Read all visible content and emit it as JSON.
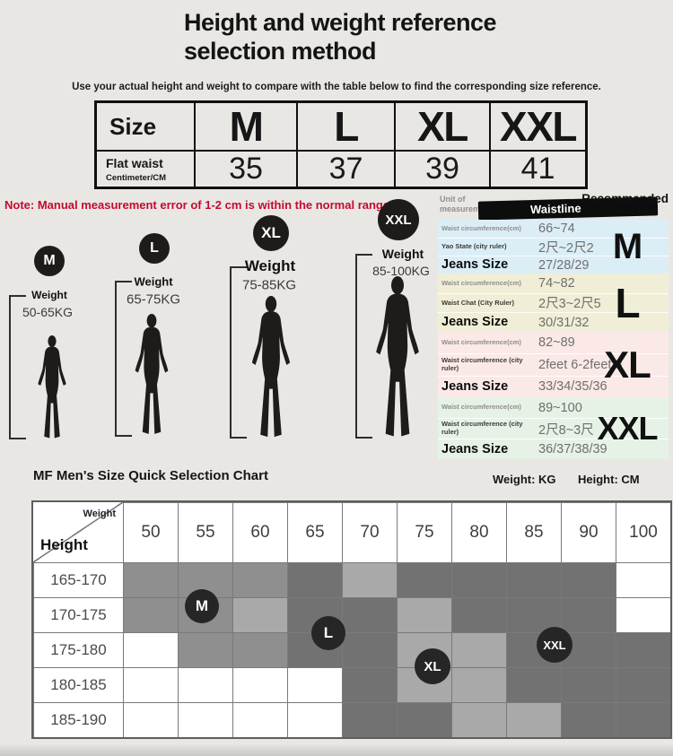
{
  "page": {
    "title_line1": "Height and weight reference",
    "title_line2": "selection method",
    "subtitle": "Use your actual height and weight to compare with the table below to find the corresponding size reference.",
    "note": "Note: Manual measurement error of 1-2 cm is within the normal range"
  },
  "size_table": {
    "corner_label": "Size",
    "sizes": [
      "M",
      "L",
      "XL",
      "XXL"
    ],
    "row_label": "Flat waist",
    "row_sublabel": "Centimeter/CM",
    "values": [
      "35",
      "37",
      "39",
      "41"
    ]
  },
  "figures": [
    {
      "badge": "M",
      "weight_label": "Weight",
      "weight_range": "50-65KG"
    },
    {
      "badge": "L",
      "weight_label": "Weight",
      "weight_range": "65-75KG"
    },
    {
      "badge": "XL",
      "weight_label": "Weight",
      "weight_range": "75-85KG"
    },
    {
      "badge": "XXL",
      "weight_label": "Weight",
      "weight_range": "85-100KG"
    }
  ],
  "spec_table": {
    "unit_label_line1": "Unit of",
    "unit_label_line2": "measurement",
    "banner_label": "Waistline",
    "recommended_label": "Recommended",
    "sections": [
      {
        "size": "M",
        "bg": "#dbeef6",
        "rows": [
          {
            "label": "Waist circumference(cm)",
            "value": "66~74"
          },
          {
            "label": "Yao State (city ruler)",
            "value": "2尺~2尺2"
          },
          {
            "label": "Jeans Size",
            "value": "27/28/29"
          }
        ]
      },
      {
        "size": "L",
        "bg": "#f1eed7",
        "rows": [
          {
            "label": "Waist circumference(cm)",
            "value": "74~82"
          },
          {
            "label": "Waist Chat (City Ruler)",
            "value": "2尺3~2尺5"
          },
          {
            "label": "Jeans Size",
            "value": "30/31/32"
          }
        ]
      },
      {
        "size": "XL",
        "bg": "#fbe9e7",
        "rows": [
          {
            "label": "Waist circumference(cm)",
            "value": "82~89"
          },
          {
            "label": "Waist circumference (city ruler)",
            "value": "2feet 6-2feet 8"
          },
          {
            "label": "Jeans Size",
            "value": "33/34/35/36"
          }
        ]
      },
      {
        "size": "XXL",
        "bg": "#e6f2e6",
        "rows": [
          {
            "label": "Waist circumference(cm)",
            "value": "89~100"
          },
          {
            "label": "Waist circumference (city ruler)",
            "value": "2尺8~3尺"
          },
          {
            "label": "Jeans Size",
            "value": "36/37/38/39"
          }
        ]
      }
    ]
  },
  "selection_chart": {
    "title": "MF Men's Size Quick Selection Chart",
    "weight_unit_label": "Weight: KG",
    "height_unit_label": "Height: CM",
    "corner_weight": "Weight",
    "corner_height": "Height",
    "weights": [
      "50",
      "55",
      "60",
      "65",
      "70",
      "75",
      "80",
      "85",
      "90",
      "100"
    ],
    "heights": [
      "165-170",
      "170-175",
      "175-180",
      "180-185",
      "185-190"
    ],
    "cells": [
      [
        "m",
        "m",
        "m",
        "d",
        "l",
        "d",
        "d",
        "d",
        "d",
        "w"
      ],
      [
        "m",
        "m",
        "l",
        "d",
        "d",
        "l",
        "d",
        "d",
        "d",
        "w"
      ],
      [
        "w",
        "m",
        "m",
        "d",
        "d",
        "l",
        "l",
        "d",
        "d",
        "d"
      ],
      [
        "w",
        "w",
        "w",
        "w",
        "d",
        "l",
        "l",
        "d",
        "d",
        "d"
      ],
      [
        "w",
        "w",
        "w",
        "w",
        "d",
        "d",
        "l",
        "l",
        "d",
        "d"
      ]
    ],
    "badges": [
      {
        "label": "M",
        "weight": "55",
        "height": "170-175"
      },
      {
        "label": "L",
        "weight": "65-70",
        "height": "170-180"
      },
      {
        "label": "XL",
        "weight": "75",
        "height": "175-185"
      },
      {
        "label": "XXL",
        "weight": "85-90",
        "height": "175-180"
      }
    ]
  },
  "colors": {
    "background": "#e9e7e4",
    "note_red": "#c40a2e",
    "silhouette": "#1d1c1b",
    "badge_dark": "#262626",
    "banner_black": "#0d0d0d",
    "cell_white": "#ffffff",
    "cell_light": "#a9a9a9",
    "cell_mid": "#8f8f8f",
    "cell_dark": "#727272"
  }
}
